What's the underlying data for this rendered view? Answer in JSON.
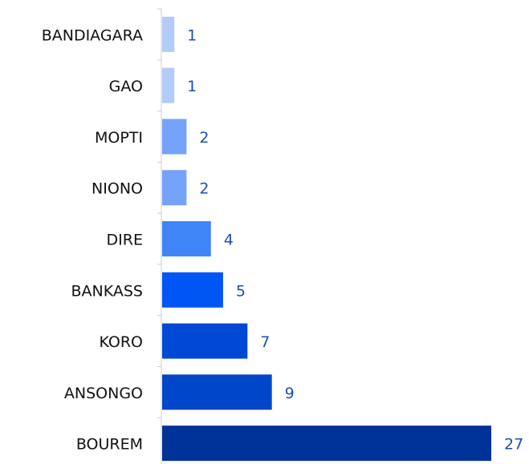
{
  "chart_data": {
    "type": "bar",
    "orientation": "horizontal",
    "categories": [
      "BANDIAGARA",
      "GAO",
      "MOPTI",
      "NIONO",
      "DIRE",
      "BANKASS",
      "KORO",
      "ANSONGO",
      "BOUREM"
    ],
    "values": [
      1,
      1,
      2,
      2,
      4,
      5,
      7,
      9,
      27
    ],
    "colors": [
      "#b3cbf8",
      "#b3cbf8",
      "#75a3fb",
      "#75a3fb",
      "#4085f8",
      "#0055f5",
      "#0049d6",
      "#0046c8",
      "#003399"
    ]
  }
}
